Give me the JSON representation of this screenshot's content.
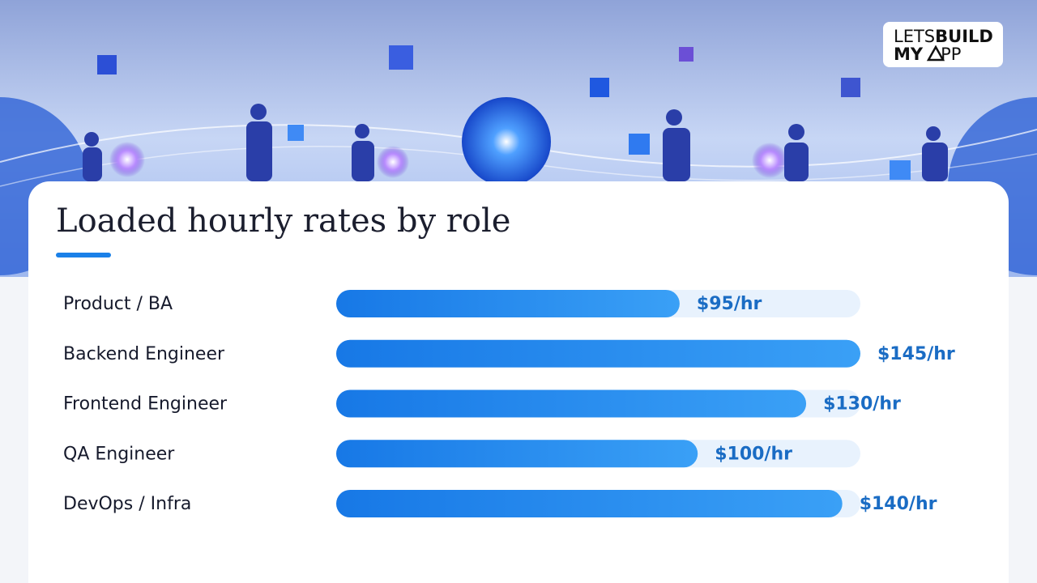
{
  "logo": {
    "lets": "LETS",
    "build": "BUILD",
    "my": "MY",
    "app": "PP"
  },
  "chart_data": {
    "type": "bar",
    "orientation": "horizontal",
    "title": "Loaded hourly rates by role",
    "categories": [
      "Product / BA",
      "Backend Engineer",
      "Frontend Engineer",
      "QA Engineer",
      "DevOps / Infra"
    ],
    "values": [
      95,
      145,
      130,
      100,
      140
    ],
    "value_labels": [
      "$95/hr",
      "$145/hr",
      "$130/hr",
      "$100/hr",
      "$140/hr"
    ],
    "xlim": [
      0,
      145
    ],
    "color": "#1a80e8"
  }
}
